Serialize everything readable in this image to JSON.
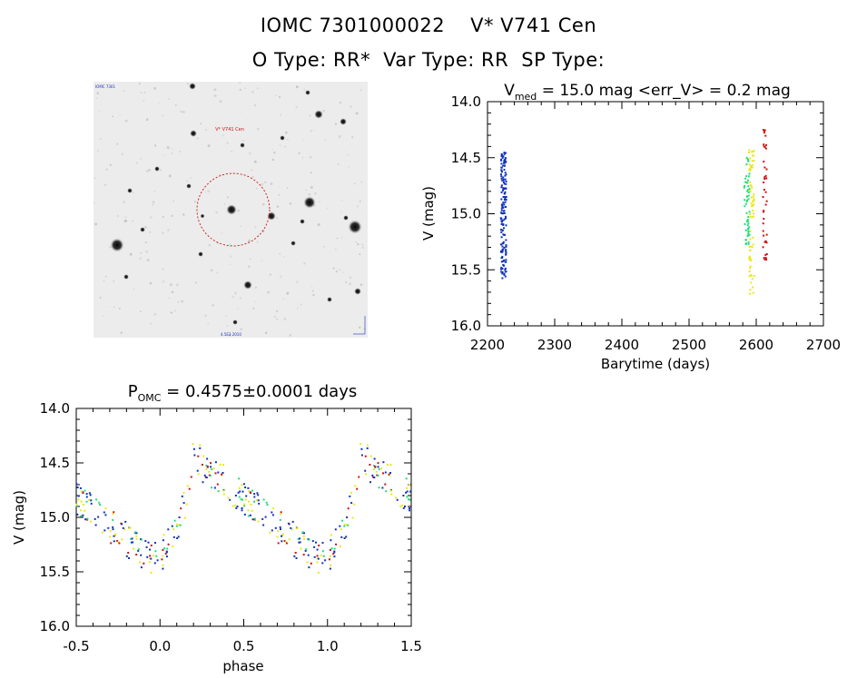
{
  "header": {
    "line1_id": "IOMC 7301000022",
    "line1_name": "V* V741 Cen",
    "line2_otype": "O Type: RR*",
    "line2_vartype": "Var Type: RR",
    "line2_sptype": "SP Type:"
  },
  "finder_chart": {
    "target_label": "V* V741 Cen",
    "corner_label_top": "IOMC 7301",
    "corner_label_bottom": "4.5E3 2010"
  },
  "colors": {
    "red": "#cc1111",
    "yellow": "#e8e81a",
    "green": "#22dd77",
    "blue": "#1133bb"
  },
  "chart_data": [
    {
      "type": "scatter",
      "name": "light-curve",
      "title_main": "V",
      "title_sub": "med",
      "title_rest": " = 15.0 mag <err_V> = 0.2 mag",
      "xlabel": "Barytime (days)",
      "ylabel": "V (mag)",
      "xlim": [
        2200,
        2700
      ],
      "ylim": [
        16.0,
        14.0
      ],
      "xticks": [
        "2200",
        "2300",
        "2400",
        "2500",
        "2600",
        "2700"
      ],
      "yticks": [
        "14.0",
        "14.5",
        "15.0",
        "15.5",
        "16.0"
      ],
      "groups": [
        {
          "color": "blue",
          "x_min": 2220,
          "x_max": 2228,
          "v_min": 14.45,
          "v_max": 15.58,
          "count": 160
        },
        {
          "color": "green",
          "x_min": 2582,
          "x_max": 2590,
          "v_min": 14.5,
          "v_max": 15.35,
          "count": 55
        },
        {
          "color": "yellow",
          "x_min": 2589,
          "x_max": 2597,
          "v_min": 14.43,
          "v_max": 15.72,
          "count": 70
        },
        {
          "color": "red",
          "x_min": 2610,
          "x_max": 2616,
          "v_min": 14.25,
          "v_max": 15.45,
          "count": 40
        }
      ]
    },
    {
      "type": "scatter",
      "name": "phased-light-curve",
      "title_main": "P",
      "title_sub": "OMC",
      "title_rest": " = 0.4575±0.0001 days",
      "xlabel": "phase",
      "ylabel": "V (mag)",
      "xlim": [
        -0.5,
        1.5
      ],
      "ylim": [
        16.0,
        14.0
      ],
      "xticks": [
        "-0.5",
        "0.0",
        "0.5",
        "1.0",
        "1.5"
      ],
      "yticks": [
        "14.0",
        "14.5",
        "15.0",
        "15.5",
        "16.0"
      ],
      "period_days": 0.4575,
      "curve_phase_min": 0.2,
      "curve_mag_max": 14.45,
      "curve_mag_min": 15.35
    }
  ]
}
